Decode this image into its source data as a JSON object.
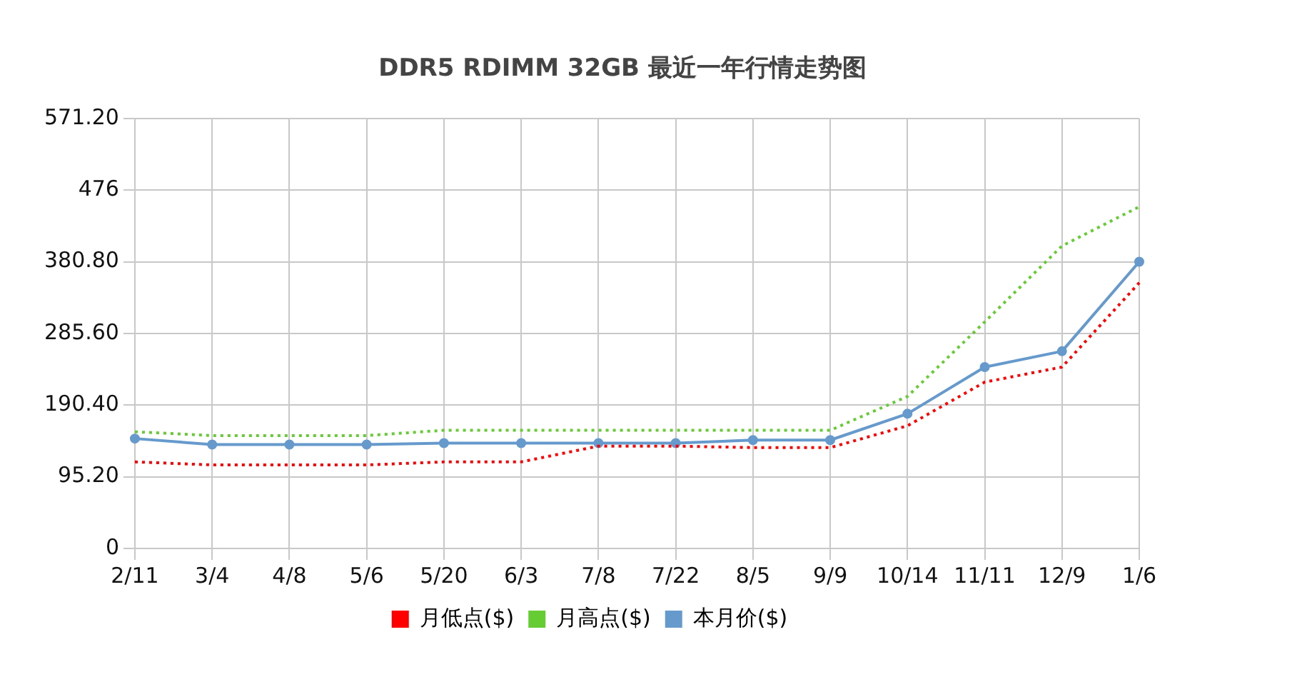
{
  "chart_data": {
    "type": "line",
    "title": "DDR5 RDIMM 32GB 最近一年行情走势图",
    "categories": [
      "2/11",
      "3/4",
      "4/8",
      "5/6",
      "5/20",
      "6/3",
      "7/8",
      "7/22",
      "8/5",
      "9/9",
      "10/14",
      "11/11",
      "12/9",
      "1/6"
    ],
    "series": [
      {
        "name": "月低点($)",
        "color": "#ff0000",
        "line_style": "dotted",
        "marker": "none",
        "values": [
          115,
          111,
          111,
          111,
          115,
          115,
          136,
          136,
          134,
          134,
          163,
          221,
          241,
          353
        ]
      },
      {
        "name": "月高点($)",
        "color": "#66cc33",
        "line_style": "dotted",
        "marker": "none",
        "values": [
          155,
          150,
          150,
          150,
          157,
          157,
          157,
          157,
          157,
          157,
          202,
          301,
          402,
          454
        ]
      },
      {
        "name": "本月价($)",
        "color": "#6699cc",
        "line_style": "solid",
        "marker": "circle",
        "values": [
          146,
          138,
          138,
          138,
          140,
          140,
          140,
          140,
          144,
          144,
          179,
          241,
          262,
          381
        ]
      }
    ],
    "ylim": [
      0,
      571.2
    ],
    "yticks": [
      {
        "value": 0,
        "label": "0"
      },
      {
        "value": 95.2,
        "label": "95.20"
      },
      {
        "value": 190.4,
        "label": "190.40"
      },
      {
        "value": 285.6,
        "label": "285.60"
      },
      {
        "value": 380.8,
        "label": "380.80"
      },
      {
        "value": 476,
        "label": "476"
      },
      {
        "value": 571.2,
        "label": "571.20"
      }
    ],
    "grid": true,
    "legend": "bottom"
  }
}
